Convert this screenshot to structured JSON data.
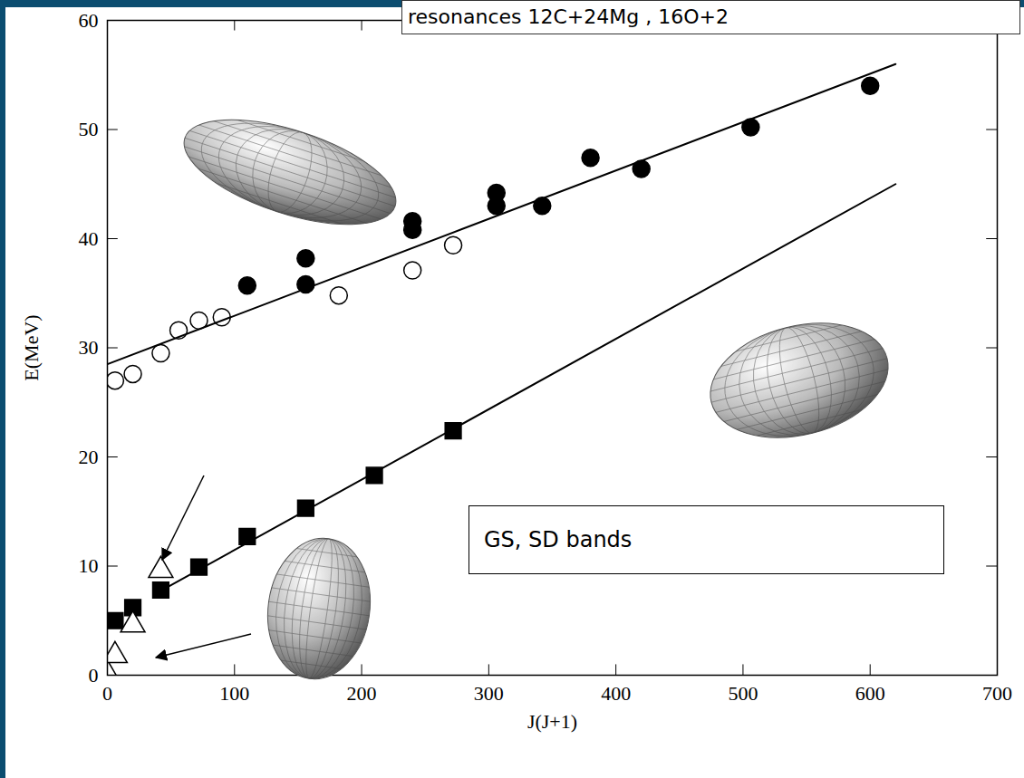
{
  "chart_data": {
    "type": "scatter",
    "title": "resonances 12C+24Mg , 16O+2",
    "annotation": "GS, SD bands",
    "x_label": "J(J+1)",
    "y_label": "E(MeV)",
    "xlim": [
      0,
      700
    ],
    "ylim": [
      0,
      60
    ],
    "xticks": [
      0,
      100,
      200,
      300,
      400,
      500,
      600,
      700
    ],
    "yticks": [
      0,
      10,
      20,
      30,
      40,
      50,
      60
    ],
    "grid": false,
    "series": [
      {
        "type": "scatter",
        "marker": "circle",
        "color": "#000000",
        "x": [
          110,
          156,
          156,
          240,
          240,
          306,
          306,
          342,
          380,
          420,
          506,
          600
        ],
        "values": [
          35.7,
          35.8,
          38.2,
          40.8,
          41.6,
          43.0,
          44.2,
          43.0,
          47.4,
          46.4,
          50.2,
          54.0
        ]
      },
      {
        "type": "scatter",
        "marker": "circle_open",
        "color": "#000000",
        "x": [
          6,
          20,
          42,
          56,
          72,
          90,
          182,
          240,
          272
        ],
        "values": [
          27.0,
          27.6,
          29.5,
          31.6,
          32.5,
          32.8,
          34.8,
          37.1,
          39.4
        ]
      },
      {
        "type": "scatter",
        "marker": "square",
        "color": "#000000",
        "x": [
          6,
          20,
          42,
          72,
          110,
          156,
          210,
          272
        ],
        "values": [
          5.0,
          6.2,
          7.8,
          9.9,
          12.7,
          15.3,
          18.3,
          22.4
        ]
      },
      {
        "type": "scatter",
        "marker": "triangle_open",
        "color": "#000000",
        "x": [
          0,
          6,
          20,
          42
        ],
        "values": [
          0.1,
          1.8,
          4.6,
          9.6
        ]
      },
      {
        "type": "line",
        "line_style": "solid",
        "color": "#000000",
        "x": [
          0,
          620
        ],
        "values": [
          28.5,
          56.0
        ]
      },
      {
        "type": "line",
        "line_style": "solid",
        "color": "#000000",
        "x": [
          40,
          620
        ],
        "values": [
          7.6,
          45.0
        ]
      }
    ]
  }
}
